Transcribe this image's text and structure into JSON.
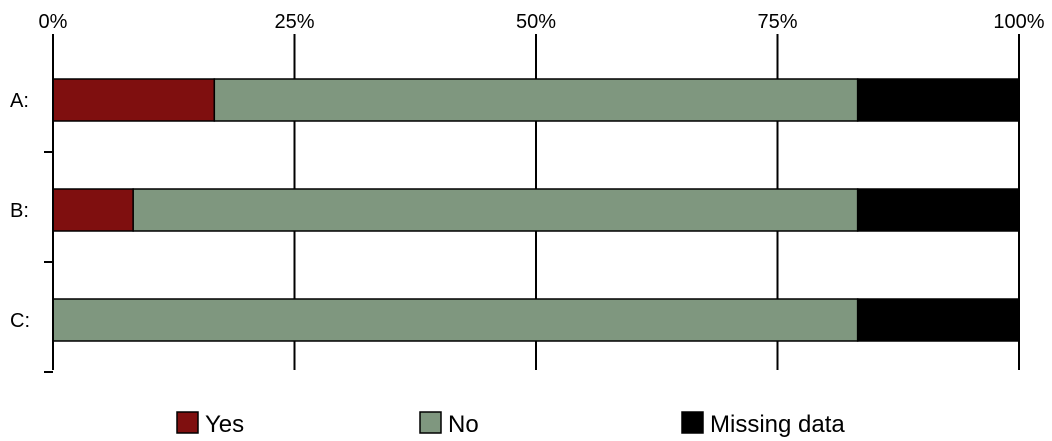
{
  "chart_data": {
    "type": "bar",
    "orientation": "horizontal",
    "stacked": true,
    "percent_scale": true,
    "categories": [
      "A:",
      "B:",
      "C:"
    ],
    "series": [
      {
        "name": "Yes",
        "color": "#7f0f0f",
        "values": [
          16.7,
          8.3,
          0
        ]
      },
      {
        "name": "No",
        "color": "#7f977f",
        "values": [
          66.6,
          75.0,
          83.3
        ]
      },
      {
        "name": "Missing data",
        "color": "#000000",
        "values": [
          16.7,
          16.7,
          16.7
        ]
      }
    ],
    "x_ticks": [
      "0%",
      "25%",
      "50%",
      "75%",
      "100%"
    ],
    "xlim": [
      0,
      100
    ],
    "x_axis_position": "top",
    "grid": "vertical",
    "legend_position": "bottom"
  }
}
